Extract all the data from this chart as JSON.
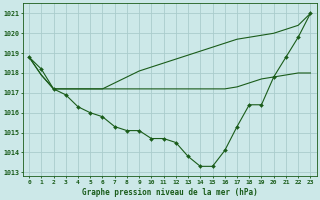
{
  "title": "Graphe pression niveau de la mer (hPa)",
  "background_color": "#cce8e8",
  "grid_color": "#aacccc",
  "line_color": "#1a5c1a",
  "xlim_min": -0.5,
  "xlim_max": 23.5,
  "ylim_min": 1012.8,
  "ylim_max": 1021.5,
  "yticks": [
    1013,
    1014,
    1015,
    1016,
    1017,
    1018,
    1019,
    1020,
    1021
  ],
  "xticks": [
    0,
    1,
    2,
    3,
    4,
    5,
    6,
    7,
    8,
    9,
    10,
    11,
    12,
    13,
    14,
    15,
    16,
    17,
    18,
    19,
    20,
    21,
    22,
    23
  ],
  "series_markers": [
    1018.8,
    1018.2,
    1017.2,
    1016.9,
    1016.3,
    1016.0,
    1015.8,
    1015.3,
    1015.1,
    1015.1,
    1014.7,
    1014.7,
    1014.5,
    1013.8,
    1013.3,
    1013.3,
    1014.1,
    1015.3,
    1016.4,
    1016.4,
    1017.8,
    1018.8,
    1019.8,
    1021.0
  ],
  "series_flat": [
    1018.8,
    1017.9,
    1017.2,
    1017.2,
    1017.2,
    1017.2,
    1017.2,
    1017.2,
    1017.2,
    1017.2,
    1017.2,
    1017.2,
    1017.2,
    1017.2,
    1017.2,
    1017.2,
    1017.2,
    1017.3,
    1017.5,
    1017.7,
    1017.8,
    1017.9,
    1018.0,
    1018.0
  ],
  "series_rise": [
    1018.8,
    1017.9,
    1017.2,
    1017.2,
    1017.2,
    1017.2,
    1017.2,
    1017.5,
    1017.8,
    1018.1,
    1018.3,
    1018.5,
    1018.7,
    1018.9,
    1019.1,
    1019.3,
    1019.5,
    1019.7,
    1019.8,
    1019.9,
    1020.0,
    1020.2,
    1020.4,
    1021.0
  ]
}
